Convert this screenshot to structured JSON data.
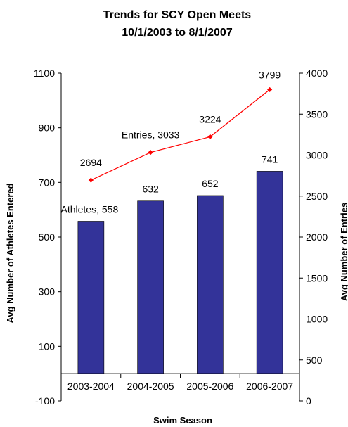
{
  "chart_data": {
    "type": "bar+line",
    "title": [
      "Trends for SCY Open Meets",
      "10/1/2003 to 8/1/2007"
    ],
    "xlabel": "Swim Season",
    "ylabel_left": "Avg Number of  Athletes Entered",
    "ylabel_right": "Avg Number of Entries",
    "categories": [
      "2003-2004",
      "2004-2005",
      "2005-2006",
      "2006-2007"
    ],
    "series": [
      {
        "name": "Athletes",
        "type": "bar",
        "axis": "left",
        "color": "#333399",
        "values": [
          558,
          632,
          652,
          741
        ],
        "labels": [
          "Athletes, 558",
          "632",
          "652",
          "741"
        ]
      },
      {
        "name": "Entries",
        "type": "line",
        "axis": "right",
        "color": "#FF0000",
        "values": [
          2694,
          3033,
          3224,
          3799
        ],
        "labels": [
          "2694",
          "Entries, 3033",
          "3224",
          "3799"
        ]
      }
    ],
    "ylim_left": [
      -100,
      1100
    ],
    "yticks_left": [
      -100,
      100,
      300,
      500,
      700,
      900,
      1100
    ],
    "ylim_right": [
      0,
      4000
    ],
    "yticks_right": [
      0,
      500,
      1000,
      1500,
      2000,
      2500,
      3000,
      3500,
      4000
    ],
    "grid": false,
    "legend": "none"
  }
}
